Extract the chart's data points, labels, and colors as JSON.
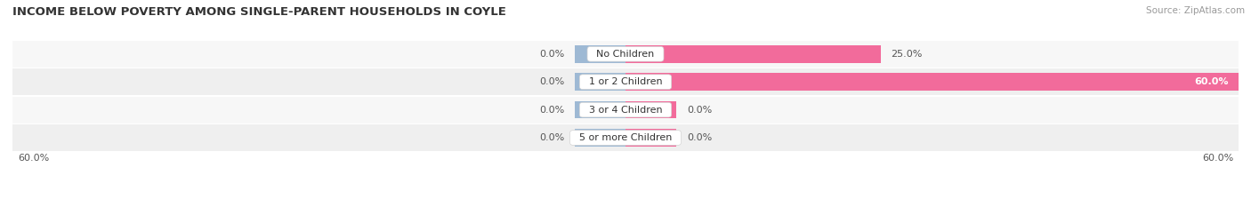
{
  "title": "INCOME BELOW POVERTY AMONG SINGLE-PARENT HOUSEHOLDS IN COYLE",
  "source": "Source: ZipAtlas.com",
  "categories": [
    "No Children",
    "1 or 2 Children",
    "3 or 4 Children",
    "5 or more Children"
  ],
  "single_father": [
    0.0,
    0.0,
    0.0,
    0.0
  ],
  "single_mother": [
    25.0,
    60.0,
    0.0,
    0.0
  ],
  "father_color": "#9eb9d4",
  "mother_color": "#f26b9b",
  "axis_max": 60.0,
  "title_fontsize": 9.5,
  "source_fontsize": 7.5,
  "legend_fontsize": 8.5,
  "cat_fontsize": 8,
  "value_fontsize": 8,
  "stub_size": 5.0,
  "bg_colors": [
    "#f7f7f7",
    "#efefef",
    "#f7f7f7",
    "#efefef"
  ]
}
